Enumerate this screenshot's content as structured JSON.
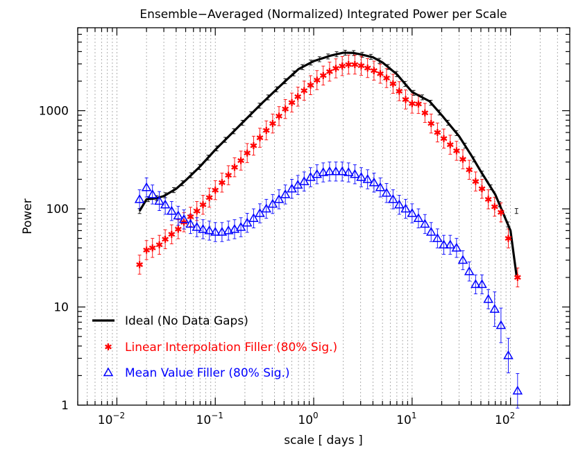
{
  "chart_data": {
    "type": "line",
    "title": "Ensemble−Averaged (Normalized) Integrated Power per Scale",
    "xlabel": "scale [ days ]",
    "ylabel": "Power",
    "xscale": "log",
    "yscale": "log",
    "xlim": [
      0.004,
      400
    ],
    "ylim": [
      1,
      7000
    ],
    "x_ticks": [
      {
        "v": 0.01,
        "base": "10",
        "exp": "−2"
      },
      {
        "v": 0.1,
        "base": "10",
        "exp": "−1"
      },
      {
        "v": 1,
        "base": "10",
        "exp": "0"
      },
      {
        "v": 10,
        "base": "10",
        "exp": "1"
      },
      {
        "v": 100,
        "base": "10",
        "exp": "2"
      }
    ],
    "y_ticks": [
      {
        "v": 1,
        "label": "1"
      },
      {
        "v": 10,
        "label": "10"
      },
      {
        "v": 100,
        "label": "100"
      },
      {
        "v": 1000,
        "label": "1000"
      }
    ],
    "grid": "vertical dotted at minor x ticks",
    "legend_position": "bottom-left",
    "series": [
      {
        "name": "Ideal (No Data Gaps)",
        "color": "#000000",
        "marker": "line",
        "x": [
          0.017,
          0.02,
          0.025,
          0.03,
          0.04,
          0.05,
          0.07,
          0.1,
          0.15,
          0.2,
          0.3,
          0.5,
          0.7,
          1.0,
          1.5,
          2.0,
          2.5,
          3.0,
          4.0,
          5.0,
          7.0,
          10.0,
          15.0,
          20.0,
          30.0,
          40.0,
          50.0,
          70.0,
          100.0,
          115.0
        ],
        "y": [
          95,
          125,
          128,
          135,
          160,
          195,
          270,
          400,
          600,
          800,
          1200,
          1950,
          2650,
          3200,
          3650,
          3900,
          3880,
          3750,
          3500,
          3100,
          2350,
          1550,
          1250,
          900,
          550,
          350,
          240,
          140,
          60,
          21
        ]
      },
      {
        "name": "Linear Interpolation Filler (80% Sig.)",
        "color": "#ff0000",
        "marker": "asterisk",
        "x": [
          0.017,
          0.02,
          0.023,
          0.027,
          0.031,
          0.036,
          0.042,
          0.048,
          0.056,
          0.065,
          0.075,
          0.087,
          0.1,
          0.117,
          0.136,
          0.157,
          0.182,
          0.211,
          0.245,
          0.284,
          0.33,
          0.383,
          0.444,
          0.515,
          0.6,
          0.69,
          0.8,
          0.93,
          1.08,
          1.25,
          1.45,
          1.68,
          1.95,
          2.26,
          2.62,
          3.04,
          3.53,
          4.1,
          4.75,
          5.5,
          6.4,
          7.4,
          8.6,
          10.0,
          11.6,
          13.5,
          15.6,
          18.1,
          21.0,
          24.4,
          28.3,
          32.8,
          38.1,
          44.2,
          51.3,
          59.5,
          69.0,
          80.0,
          95.0,
          118.0
        ],
        "y": [
          27,
          38,
          40,
          43,
          49,
          55,
          62,
          73,
          83,
          95,
          110,
          130,
          155,
          185,
          220,
          265,
          310,
          370,
          440,
          530,
          630,
          740,
          880,
          1040,
          1210,
          1390,
          1600,
          1820,
          2050,
          2280,
          2500,
          2700,
          2850,
          2950,
          2950,
          2870,
          2720,
          2560,
          2380,
          2150,
          1880,
          1580,
          1300,
          1180,
          1170,
          950,
          740,
          600,
          520,
          450,
          390,
          320,
          250,
          190,
          160,
          125,
          105,
          92,
          50,
          20
        ]
      },
      {
        "name": "Mean Value Filler (80% Sig.)",
        "color": "#0000ff",
        "marker": "triangle",
        "x": [
          0.017,
          0.02,
          0.023,
          0.027,
          0.031,
          0.036,
          0.042,
          0.048,
          0.056,
          0.065,
          0.075,
          0.087,
          0.1,
          0.117,
          0.136,
          0.157,
          0.182,
          0.211,
          0.245,
          0.284,
          0.33,
          0.383,
          0.444,
          0.515,
          0.6,
          0.69,
          0.8,
          0.93,
          1.08,
          1.25,
          1.45,
          1.68,
          1.95,
          2.26,
          2.62,
          3.04,
          3.53,
          4.1,
          4.75,
          5.5,
          6.4,
          7.4,
          8.6,
          10.0,
          11.6,
          13.5,
          15.6,
          18.1,
          21.0,
          24.4,
          28.3,
          32.8,
          38.1,
          44.2,
          51.3,
          59.5,
          69.0,
          80.0,
          95.0,
          118.0
        ],
        "y": [
          125,
          165,
          140,
          120,
          110,
          95,
          85,
          78,
          70,
          65,
          62,
          60,
          58,
          58,
          60,
          62,
          65,
          72,
          80,
          90,
          100,
          112,
          125,
          140,
          160,
          175,
          190,
          210,
          225,
          235,
          240,
          240,
          240,
          235,
          225,
          210,
          200,
          185,
          165,
          145,
          125,
          110,
          100,
          90,
          80,
          70,
          58,
          50,
          43,
          43,
          40,
          30,
          23,
          17,
          17,
          12,
          9.5,
          6.5,
          3.2,
          1.4
        ]
      }
    ]
  }
}
